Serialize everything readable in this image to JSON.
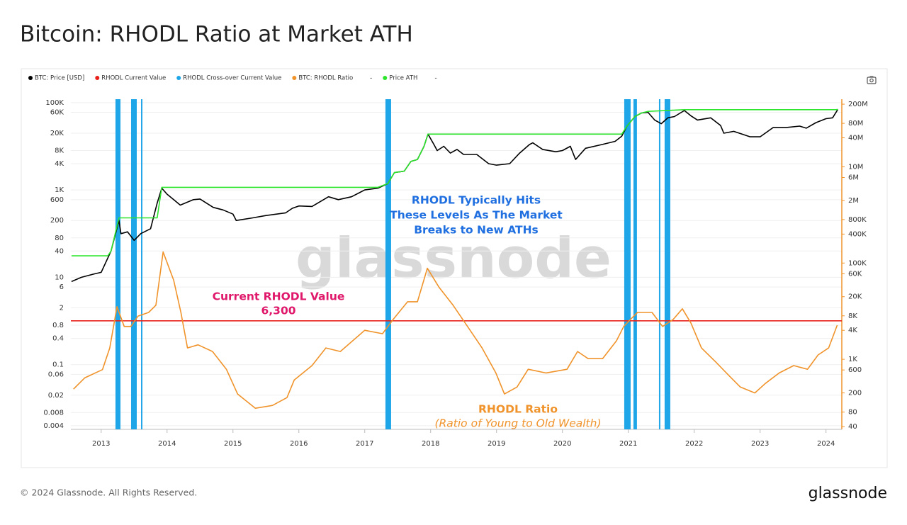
{
  "chart_data": {
    "type": "line",
    "title": "Bitcoin: RHODL Ratio at Market ATH",
    "log_scale": true,
    "grid": true,
    "legend_position": "top-left",
    "xlim": [
      2012.54,
      2024.24
    ],
    "xticks": [
      2013,
      2014,
      2015,
      2016,
      2017,
      2018,
      2019,
      2020,
      2021,
      2022,
      2023,
      2024
    ],
    "ylim": [
      0.0033,
      120000
    ],
    "yticks": [
      {
        "value": 100000,
        "label": "100K"
      },
      {
        "value": 60000,
        "label": "60K"
      },
      {
        "value": 20000,
        "label": "20K"
      },
      {
        "value": 8000,
        "label": "8K"
      },
      {
        "value": 4000,
        "label": "4K"
      },
      {
        "value": 1000,
        "label": "1K"
      },
      600,
      200,
      80,
      40,
      10,
      6,
      2,
      0.8,
      0.4,
      0.1,
      0.06,
      0.02,
      0.008,
      0.004
    ],
    "y2lim": [
      35,
      254000000
    ],
    "y2ticks": [
      {
        "value": 200000000,
        "label": "200M"
      },
      {
        "value": 80000000,
        "label": "80M"
      },
      {
        "value": 40000000,
        "label": "40M"
      },
      {
        "value": 10000000,
        "label": "10M"
      },
      {
        "value": 6000000,
        "label": "6M"
      },
      {
        "value": 2000000,
        "label": "2M"
      },
      {
        "value": 800000,
        "label": "800K"
      },
      {
        "value": 400000,
        "label": "400K"
      },
      {
        "value": 100000,
        "label": "100K"
      },
      {
        "value": 60000,
        "label": "60K"
      },
      {
        "value": 20000,
        "label": "20K"
      },
      {
        "value": 8000,
        "label": "8K"
      },
      {
        "value": 4000,
        "label": "4K"
      },
      {
        "value": 1000,
        "label": "1K"
      },
      600,
      200,
      80,
      40
    ],
    "series": [
      {
        "name": "BTC: Price [USD]",
        "color": "#000000",
        "x": [
          2012.55,
          2012.7,
          2012.9,
          2013.0,
          2013.15,
          2013.27,
          2013.3,
          2013.4,
          2013.5,
          2013.6,
          2013.75,
          2013.85,
          2013.92,
          2014.0,
          2014.1,
          2014.2,
          2014.4,
          2014.5,
          2014.7,
          2014.85,
          2015.0,
          2015.05,
          2015.3,
          2015.5,
          2015.8,
          2015.9,
          2016.0,
          2016.2,
          2016.45,
          2016.6,
          2016.8,
          2017.0,
          2017.2,
          2017.35,
          2017.45,
          2017.6,
          2017.7,
          2017.8,
          2017.9,
          2017.96,
          2018.05,
          2018.1,
          2018.2,
          2018.3,
          2018.4,
          2018.5,
          2018.7,
          2018.88,
          2019.0,
          2019.2,
          2019.35,
          2019.5,
          2019.55,
          2019.7,
          2019.9,
          2020.0,
          2020.12,
          2020.2,
          2020.35,
          2020.6,
          2020.8,
          2020.9,
          2020.98,
          2021.1,
          2021.2,
          2021.3,
          2021.4,
          2021.5,
          2021.6,
          2021.7,
          2021.85,
          2021.95,
          2022.05,
          2022.25,
          2022.4,
          2022.45,
          2022.6,
          2022.85,
          2023.0,
          2023.2,
          2023.4,
          2023.6,
          2023.7,
          2023.85,
          2024.0,
          2024.1,
          2024.18
        ],
        "values": [
          8,
          10,
          12,
          13,
          40,
          200,
          100,
          110,
          70,
          100,
          130,
          500,
          1100,
          800,
          600,
          450,
          600,
          620,
          400,
          350,
          280,
          200,
          230,
          260,
          300,
          380,
          430,
          420,
          700,
          600,
          700,
          1000,
          1100,
          1400,
          2500,
          2700,
          4500,
          5000,
          10000,
          19000,
          11000,
          8000,
          10000,
          7000,
          8500,
          6500,
          6500,
          4000,
          3700,
          4000,
          7000,
          11000,
          12000,
          8500,
          7500,
          8000,
          10000,
          5000,
          9000,
          11000,
          13000,
          17000,
          29000,
          48000,
          58000,
          60000,
          40000,
          33000,
          45000,
          48000,
          66000,
          50000,
          40000,
          45000,
          30000,
          20000,
          22000,
          16500,
          16500,
          27000,
          27000,
          29000,
          26000,
          35000,
          43000,
          45000,
          70000
        ]
      },
      {
        "name": "RHODL Current Value",
        "color": "#e8221b",
        "axis": "y2",
        "values": [
          6300
        ],
        "value_labels": [
          "6,300"
        ]
      },
      {
        "name": "RHODL Cross-over Current Value",
        "color": "#1ea6e8",
        "bands": [
          [
            2013.217,
            2013.293
          ],
          [
            2013.454,
            2013.54
          ],
          [
            2013.605,
            2013.626
          ],
          [
            2017.314,
            2017.4
          ],
          [
            2020.938,
            2021.035
          ],
          [
            2021.078,
            2021.131
          ],
          [
            2021.465,
            2021.486
          ],
          [
            2021.551,
            2021.637
          ]
        ]
      },
      {
        "name": "BTC: RHODL Ratio",
        "color": "#f0932b",
        "axis": "y2",
        "x": [
          2012.58,
          2012.75,
          2013.02,
          2013.13,
          2013.24,
          2013.35,
          2013.45,
          2013.56,
          2013.72,
          2013.83,
          2013.94,
          2014.1,
          2014.21,
          2014.31,
          2014.47,
          2014.69,
          2014.9,
          2015.07,
          2015.34,
          2015.6,
          2015.82,
          2015.93,
          2016.2,
          2016.41,
          2016.63,
          2017.0,
          2017.27,
          2017.43,
          2017.65,
          2017.8,
          2017.95,
          2018.13,
          2018.34,
          2018.56,
          2018.78,
          2018.99,
          2019.12,
          2019.31,
          2019.48,
          2019.75,
          2020.07,
          2020.23,
          2020.39,
          2020.61,
          2020.82,
          2020.93,
          2021.03,
          2021.14,
          2021.36,
          2021.52,
          2021.68,
          2021.82,
          2021.95,
          2022.11,
          2022.33,
          2022.54,
          2022.7,
          2022.92,
          2023.08,
          2023.29,
          2023.51,
          2023.72,
          2023.88,
          2024.04,
          2024.17
        ],
        "values": [
          240,
          410,
          610,
          1720,
          12400,
          4800,
          4800,
          7900,
          9400,
          13300,
          170000,
          44000,
          9400,
          1720,
          2000,
          1450,
          620,
          190,
          96,
          110,
          160,
          370,
          740,
          1720,
          1450,
          4000,
          3400,
          6700,
          15700,
          15700,
          78000,
          31000,
          13300,
          4800,
          1720,
          520,
          190,
          265,
          620,
          520,
          620,
          1450,
          1030,
          1030,
          2420,
          4800,
          6700,
          9400,
          9400,
          4800,
          6700,
          11200,
          5700,
          1720,
          870,
          440,
          265,
          200,
          315,
          520,
          740,
          620,
          1230,
          1720,
          5100
        ]
      },
      {
        "name": "-"
      },
      {
        "name": "Price ATH",
        "color": "#2ee52e",
        "x": [
          2012.55,
          2013.1,
          2013.15,
          2013.27,
          2013.85,
          2013.92,
          2017.2,
          2017.35,
          2017.45,
          2017.6,
          2017.7,
          2017.8,
          2017.9,
          2017.96,
          2020.9,
          2020.98,
          2021.1,
          2021.2,
          2021.3,
          2021.85,
          2024.15,
          2024.18
        ],
        "values": [
          31,
          31,
          40,
          230,
          230,
          1150,
          1150,
          1400,
          2500,
          2700,
          4500,
          5000,
          10000,
          19000,
          19000,
          29000,
          48000,
          58000,
          63000,
          69000,
          69000,
          70000
        ]
      },
      {
        "name": "-"
      }
    ],
    "annotations": {
      "watermark": "glassnode",
      "rhodl_hits": [
        "RHODL Typically Hits",
        "These Levels As The Market",
        "Breaks to New ATHs"
      ],
      "current_value": "Current RHODL Value",
      "ratio_title": "RHODL Ratio",
      "ratio_subtitle": "(Ratio of Young to Old Wealth)"
    }
  },
  "footer": {
    "copyright": "© 2024 Glassnode. All Rights Reserved.",
    "logo": "glassnode"
  }
}
